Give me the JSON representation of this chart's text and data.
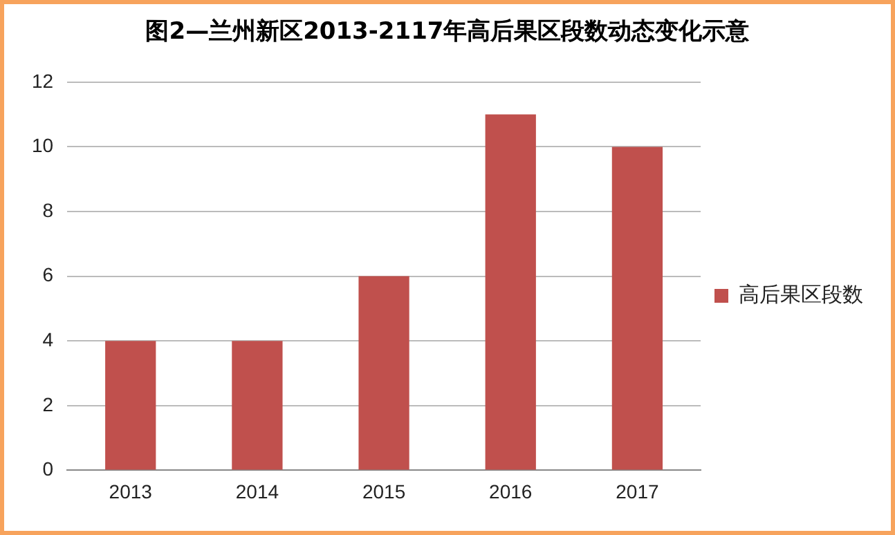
{
  "chart_data": {
    "type": "bar",
    "title": "图2—兰州新区2013-2117年高后果区段数动态变化示意",
    "categories": [
      "2013",
      "2014",
      "2015",
      "2016",
      "2017"
    ],
    "series": [
      {
        "name": "高后果区段数",
        "color": "#c0504d",
        "values": [
          4,
          4,
          6,
          11,
          10
        ]
      }
    ],
    "ylim": [
      0,
      12
    ],
    "yticks": [
      0,
      2,
      4,
      6,
      8,
      10,
      12
    ],
    "grid": "y",
    "legend": "right"
  }
}
